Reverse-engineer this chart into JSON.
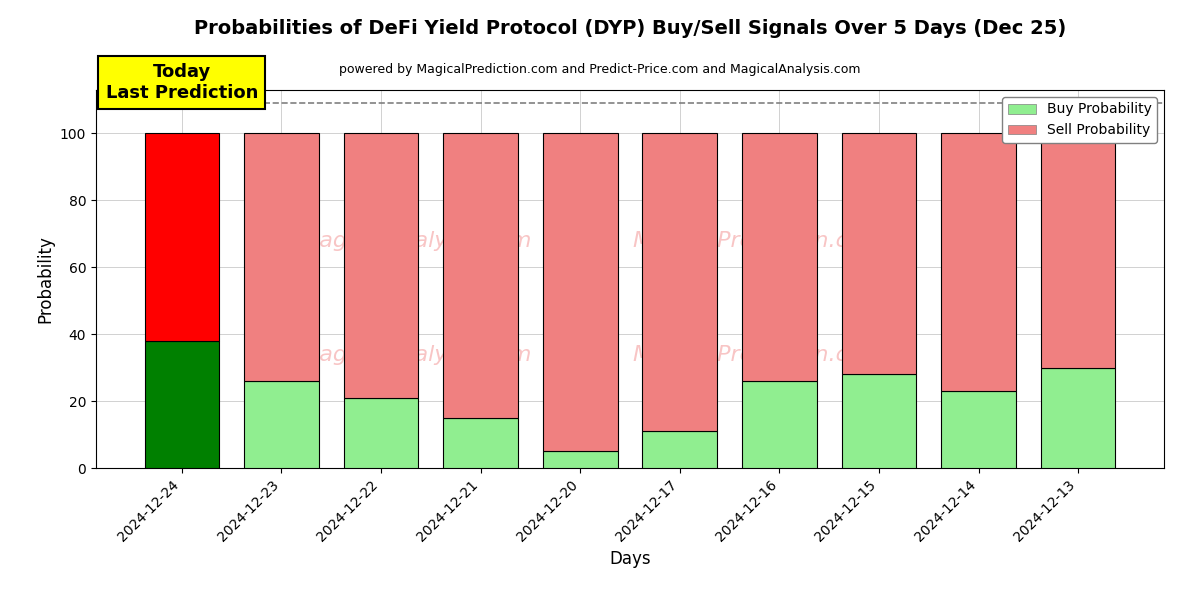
{
  "title": "Probabilities of DeFi Yield Protocol (DYP) Buy/Sell Signals Over 5 Days (Dec 25)",
  "subtitle": "powered by MagicalPrediction.com and Predict-Price.com and MagicalAnalysis.com",
  "xlabel": "Days",
  "ylabel": "Probability",
  "categories": [
    "2024-12-24",
    "2024-12-23",
    "2024-12-22",
    "2024-12-21",
    "2024-12-20",
    "2024-12-17",
    "2024-12-16",
    "2024-12-15",
    "2024-12-14",
    "2024-12-13"
  ],
  "buy_values": [
    38,
    26,
    21,
    15,
    5,
    11,
    26,
    28,
    23,
    30
  ],
  "sell_values": [
    62,
    74,
    79,
    85,
    95,
    89,
    74,
    72,
    77,
    70
  ],
  "today_buy_color": "#008000",
  "today_sell_color": "#ff0000",
  "buy_color": "#90ee90",
  "sell_color": "#f08080",
  "today_annotation_text": "Today\nLast Prediction",
  "today_annotation_bg": "#ffff00",
  "legend_buy_label": "Buy Probability",
  "legend_sell_label": "Sell Probability",
  "ylim": [
    0,
    113
  ],
  "dashed_line_y": 109,
  "figsize": [
    12,
    6
  ],
  "dpi": 100
}
